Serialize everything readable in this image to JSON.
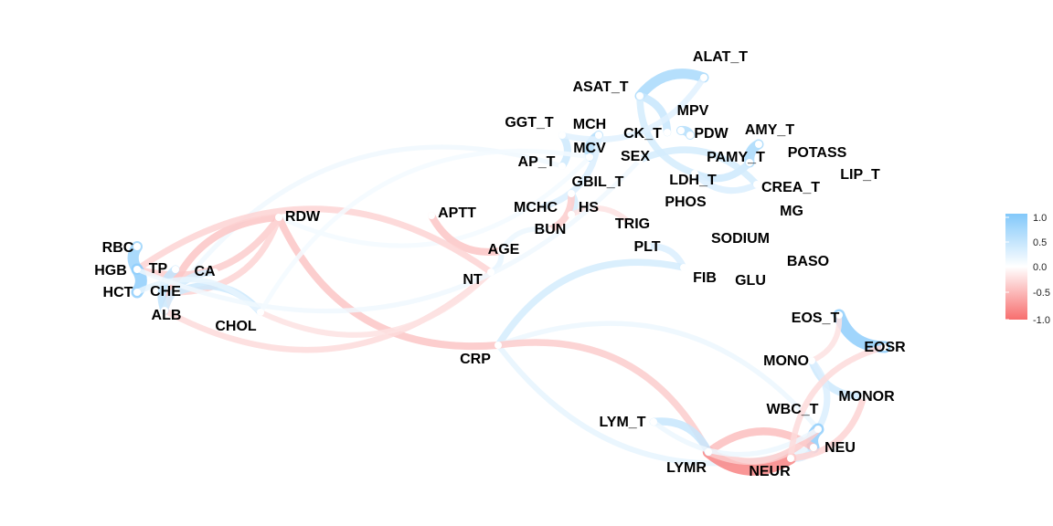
{
  "legend": {
    "ticks": [
      "1.0",
      "0.5",
      "0.0",
      "-0.5",
      "-1.0"
    ],
    "colors": {
      "positive": "#82c8fa",
      "zero": "#ffffff",
      "negative": "#f76e6e"
    }
  },
  "nodes": [
    {
      "id": "ALAT_T",
      "label": "ALAT_T"
    },
    {
      "id": "ASAT_T",
      "label": "ASAT_T"
    },
    {
      "id": "MPV",
      "label": "MPV"
    },
    {
      "id": "GGT_T",
      "label": "GGT_T"
    },
    {
      "id": "MCH",
      "label": "MCH"
    },
    {
      "id": "CK_T",
      "label": "CK_T"
    },
    {
      "id": "PDW",
      "label": "PDW"
    },
    {
      "id": "AMY_T",
      "label": "AMY_T"
    },
    {
      "id": "MCV",
      "label": "MCV"
    },
    {
      "id": "SEX",
      "label": "SEX"
    },
    {
      "id": "PAMY_T",
      "label": "PAMY_T"
    },
    {
      "id": "POTASS",
      "label": "POTASS"
    },
    {
      "id": "AP_T",
      "label": "AP_T"
    },
    {
      "id": "LDH_T",
      "label": "LDH_T"
    },
    {
      "id": "LIP_T",
      "label": "LIP_T"
    },
    {
      "id": "GBIL_T",
      "label": "GBIL_T"
    },
    {
      "id": "CREA_T",
      "label": "CREA_T"
    },
    {
      "id": "PHOS",
      "label": "PHOS"
    },
    {
      "id": "MCHC",
      "label": "MCHC"
    },
    {
      "id": "HS",
      "label": "HS"
    },
    {
      "id": "MG",
      "label": "MG"
    },
    {
      "id": "APTT",
      "label": "APTT"
    },
    {
      "id": "RDW",
      "label": "RDW"
    },
    {
      "id": "TRIG",
      "label": "TRIG"
    },
    {
      "id": "BUN",
      "label": "BUN"
    },
    {
      "id": "SODIUM",
      "label": "SODIUM"
    },
    {
      "id": "RBC",
      "label": "RBC"
    },
    {
      "id": "AGE",
      "label": "AGE"
    },
    {
      "id": "PLT",
      "label": "PLT"
    },
    {
      "id": "BASO",
      "label": "BASO"
    },
    {
      "id": "HGB",
      "label": "HGB"
    },
    {
      "id": "TP",
      "label": "TP"
    },
    {
      "id": "CA",
      "label": "CA"
    },
    {
      "id": "NT",
      "label": "NT"
    },
    {
      "id": "FIB",
      "label": "FIB"
    },
    {
      "id": "GLU",
      "label": "GLU"
    },
    {
      "id": "HCT",
      "label": "HCT"
    },
    {
      "id": "CHE",
      "label": "CHE"
    },
    {
      "id": "ALB",
      "label": "ALB"
    },
    {
      "id": "CHOL",
      "label": "CHOL"
    },
    {
      "id": "EOS_T",
      "label": "EOS_T"
    },
    {
      "id": "EOSR",
      "label": "EOSR"
    },
    {
      "id": "CRP",
      "label": "CRP"
    },
    {
      "id": "MONO",
      "label": "MONO"
    },
    {
      "id": "MONOR",
      "label": "MONOR"
    },
    {
      "id": "WBC_T",
      "label": "WBC_T"
    },
    {
      "id": "LYM_T",
      "label": "LYM_T"
    },
    {
      "id": "NEU",
      "label": "NEU"
    },
    {
      "id": "LYMR",
      "label": "LYMR"
    },
    {
      "id": "NEUR",
      "label": "NEUR"
    }
  ],
  "edges": [
    {
      "from": "ALAT_T",
      "to": "ASAT_T",
      "r": 0.7
    },
    {
      "from": "ASAT_T",
      "to": "CK_T",
      "r": 0.45
    },
    {
      "from": "ASAT_T",
      "to": "LDH_T",
      "r": 0.35
    },
    {
      "from": "MPV",
      "to": "PDW",
      "r": 0.6
    },
    {
      "from": "AMY_T",
      "to": "PAMY_T",
      "r": 0.7
    },
    {
      "from": "PAMY_T",
      "to": "LDH_T",
      "r": 0.4
    },
    {
      "from": "LDH_T",
      "to": "CREA_T",
      "r": 0.3
    },
    {
      "from": "SEX",
      "to": "CREA_T",
      "r": 0.35
    },
    {
      "from": "MCH",
      "to": "MCV",
      "r": 0.6
    },
    {
      "from": "GGT_T",
      "to": "AP_T",
      "r": 0.4
    },
    {
      "from": "GGT_T",
      "to": "ALAT_T",
      "r": 0.25
    },
    {
      "from": "GBIL_T",
      "to": "HS",
      "r": 0.35
    },
    {
      "from": "MCHC",
      "to": "MCH",
      "r": 0.3
    },
    {
      "from": "MCV",
      "to": "RDW",
      "r": 0.1
    },
    {
      "from": "AP_T",
      "to": "CHE",
      "r": 0.12
    },
    {
      "from": "GBIL_T",
      "to": "BUN",
      "r": -0.35
    },
    {
      "from": "BUN",
      "to": "AGE",
      "r": 0.15
    },
    {
      "from": "AGE",
      "to": "NT",
      "r": 0.2
    },
    {
      "from": "APTT",
      "to": "AGE",
      "r": -0.4
    },
    {
      "from": "HS",
      "to": "TRIG",
      "r": -0.2
    },
    {
      "from": "RDW",
      "to": "CRP",
      "r": -0.4
    },
    {
      "from": "RDW",
      "to": "HGB",
      "r": -0.35
    },
    {
      "from": "RDW",
      "to": "ALB",
      "r": -0.4
    },
    {
      "from": "RDW",
      "to": "CHE",
      "r": -0.3
    },
    {
      "from": "NT",
      "to": "HGB",
      "r": -0.3
    },
    {
      "from": "NT",
      "to": "ALB",
      "r": -0.25
    },
    {
      "from": "RBC",
      "to": "HGB",
      "r": 0.8
    },
    {
      "from": "HGB",
      "to": "HCT",
      "r": 0.9
    },
    {
      "from": "TP",
      "to": "ALB",
      "r": 0.5
    },
    {
      "from": "CHE",
      "to": "CHOL",
      "r": 0.4
    },
    {
      "from": "CA",
      "to": "ALB",
      "r": 0.35
    },
    {
      "from": "HCT",
      "to": "CHOL",
      "r": 0.2
    },
    {
      "from": "CHOL",
      "to": "NT",
      "r": -0.2
    },
    {
      "from": "PLT",
      "to": "FIB",
      "r": 0.3
    },
    {
      "from": "FIB",
      "to": "CRP",
      "r": 0.35
    },
    {
      "from": "CRP",
      "to": "WBC_T",
      "r": 0.15
    },
    {
      "from": "CRP",
      "to": "NEU",
      "r": 0.2
    },
    {
      "from": "CRP",
      "to": "LYMR",
      "r": -0.35
    },
    {
      "from": "EOS_T",
      "to": "EOSR",
      "r": 0.9
    },
    {
      "from": "EOS_T",
      "to": "MONO",
      "r": -0.2
    },
    {
      "from": "MONO",
      "to": "MONOR",
      "r": 0.4
    },
    {
      "from": "MONO",
      "to": "WBC_T",
      "r": 0.3
    },
    {
      "from": "WBC_T",
      "to": "NEU",
      "r": 0.9
    },
    {
      "from": "NEU",
      "to": "NEUR",
      "r": 0.3
    },
    {
      "from": "LYMR",
      "to": "NEUR",
      "r": -0.85
    },
    {
      "from": "LYMR",
      "to": "NEU",
      "r": -0.45
    },
    {
      "from": "LYMR",
      "to": "WBC_T",
      "r": -0.35
    },
    {
      "from": "LYM_T",
      "to": "LYMR",
      "r": 0.45
    },
    {
      "from": "LYM_T",
      "to": "WBC_T",
      "r": 0.15
    },
    {
      "from": "MONOR",
      "to": "NEUR",
      "r": -0.3
    },
    {
      "from": "EOSR",
      "to": "NEUR",
      "r": -0.25
    },
    {
      "from": "SEX",
      "to": "HGB",
      "r": 0.12
    },
    {
      "from": "MCV",
      "to": "CHOL",
      "r": 0.1
    }
  ]
}
